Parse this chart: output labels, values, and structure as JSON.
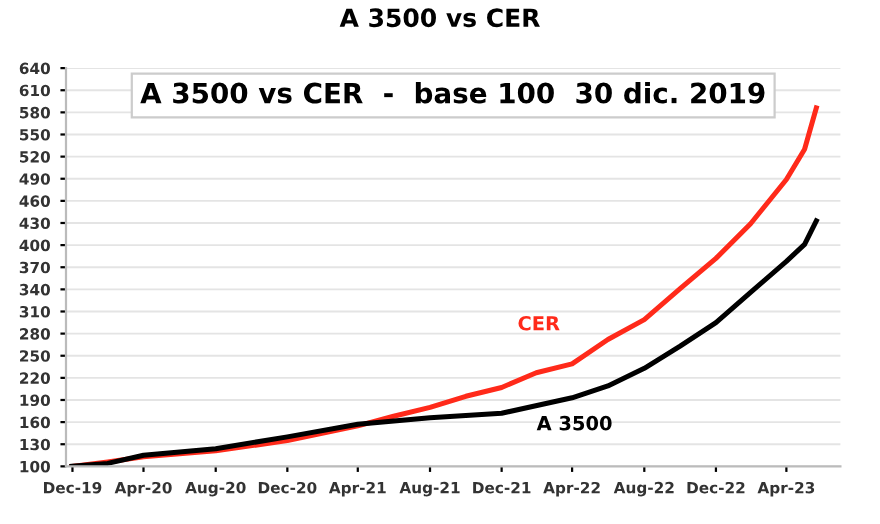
{
  "chart_data": {
    "type": "line",
    "title": "A 3500 vs CER",
    "subtitle": "A 3500 vs CER  -  base 100  30 dic. 2019",
    "series": [
      {
        "name": "CER",
        "color": "#ff2a1a",
        "x": [
          "2019-12-30",
          "2020-02-29",
          "2020-04-30",
          "2020-08-31",
          "2020-12-31",
          "2021-04-30",
          "2021-06-30",
          "2021-08-31",
          "2021-10-31",
          "2021-12-31",
          "2022-02-28",
          "2022-04-30",
          "2022-06-30",
          "2022-08-31",
          "2022-10-31",
          "2022-12-31",
          "2023-02-28",
          "2023-04-30",
          "2023-05-31",
          "2023-06-20"
        ],
        "values": [
          100,
          106,
          113,
          121,
          135,
          155,
          168,
          180,
          195,
          207,
          227,
          239,
          272,
          299,
          341,
          382,
          429,
          489,
          530,
          586
        ]
      },
      {
        "name": "A 3500",
        "color": "#000000",
        "x": [
          "2019-12-30",
          "2020-02-29",
          "2020-04-30",
          "2020-08-31",
          "2020-12-31",
          "2021-04-30",
          "2021-08-31",
          "2021-12-31",
          "2022-04-30",
          "2022-06-30",
          "2022-08-31",
          "2022-10-31",
          "2022-12-31",
          "2023-02-28",
          "2023-04-30",
          "2023-05-31",
          "2023-06-20"
        ],
        "values": [
          100,
          104,
          115,
          124,
          140,
          157,
          166,
          172,
          193,
          209,
          233,
          263,
          295,
          336,
          378,
          401,
          433
        ]
      }
    ],
    "xlim": [
      "2019-12-20",
      "2023-07-31"
    ],
    "xticks": [
      {
        "value": "2019-12-31",
        "label": "Dec-19"
      },
      {
        "value": "2020-04-30",
        "label": "Apr-20"
      },
      {
        "value": "2020-08-31",
        "label": "Aug-20"
      },
      {
        "value": "2020-12-31",
        "label": "Dec-20"
      },
      {
        "value": "2021-04-30",
        "label": "Apr-21"
      },
      {
        "value": "2021-08-31",
        "label": "Aug-21"
      },
      {
        "value": "2021-12-31",
        "label": "Dec-21"
      },
      {
        "value": "2022-04-30",
        "label": "Apr-22"
      },
      {
        "value": "2022-08-31",
        "label": "Aug-22"
      },
      {
        "value": "2022-12-31",
        "label": "Dec-22"
      },
      {
        "value": "2023-04-30",
        "label": "Apr-23"
      }
    ],
    "ylim": [
      100,
      640
    ],
    "yticks": [
      100,
      130,
      160,
      190,
      220,
      250,
      280,
      310,
      340,
      370,
      400,
      430,
      460,
      490,
      520,
      550,
      580,
      610,
      640
    ],
    "grid": "y",
    "legend": false
  }
}
